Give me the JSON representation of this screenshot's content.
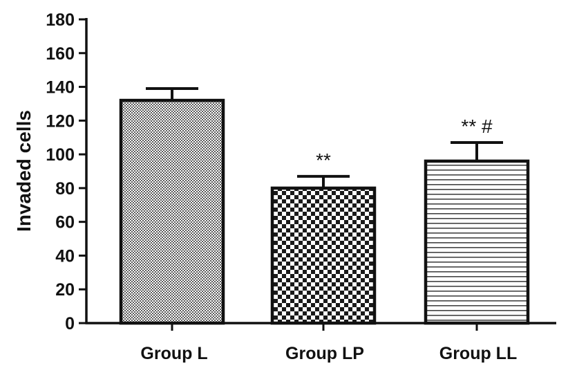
{
  "chart_data": {
    "type": "bar",
    "title": "",
    "xlabel": "",
    "ylabel": "Invaded cells",
    "ylim": [
      0,
      180
    ],
    "yticks": [
      0,
      20,
      40,
      60,
      80,
      100,
      120,
      140,
      160,
      180
    ],
    "categories": [
      "Group L",
      "Group LP",
      "Group LL"
    ],
    "values": [
      132,
      80,
      96
    ],
    "error": [
      7,
      7,
      11
    ],
    "annotations": [
      "",
      "**",
      "** #"
    ],
    "patterns": [
      "fine-dots",
      "checkerboard",
      "horizontal-lines"
    ],
    "grid": false,
    "legend": "none",
    "colors": {
      "stroke": "#111111",
      "fill_light": "#ffffff",
      "pattern_dark": "#222222",
      "pattern_mid": "#777777"
    }
  }
}
